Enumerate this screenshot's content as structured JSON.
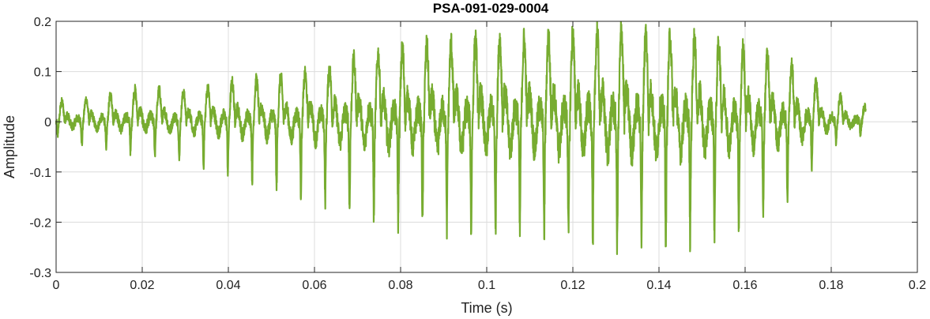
{
  "chart_data": {
    "type": "line",
    "title": "PSA-091-029-0004",
    "xlabel": "Time (s)",
    "ylabel": "Amplitude",
    "xlim": [
      0,
      0.2
    ],
    "ylim": [
      -0.3,
      0.2
    ],
    "grid": true,
    "x_ticks": [
      0,
      0.02,
      0.04,
      0.06,
      0.08,
      0.1,
      0.12,
      0.14,
      0.16,
      0.18,
      0.2
    ],
    "x_tick_labels": [
      "0",
      "0.02",
      "0.04",
      "0.06",
      "0.08",
      "0.1",
      "0.12",
      "0.14",
      "0.16",
      "0.18",
      "0.2"
    ],
    "y_ticks": [
      0.2,
      0.1,
      0,
      -0.1,
      -0.2,
      -0.3
    ],
    "y_tick_labels": [
      "0.2",
      "0.1",
      "0",
      "-0.1",
      "-0.2",
      "-0.3"
    ],
    "series": [
      {
        "color": "#77ac30",
        "duration_s": 0.188,
        "pulse_period_s": 0.00565,
        "envelope": {
          "t": [
            0,
            0.01,
            0.02,
            0.03,
            0.04,
            0.05,
            0.06,
            0.07,
            0.08,
            0.09,
            0.1,
            0.11,
            0.12,
            0.13,
            0.14,
            0.15,
            0.16,
            0.17,
            0.18,
            0.188
          ],
          "max": [
            0.04,
            0.05,
            0.07,
            0.06,
            0.08,
            0.09,
            0.1,
            0.13,
            0.15,
            0.16,
            0.17,
            0.17,
            0.18,
            0.19,
            0.18,
            0.17,
            0.15,
            0.12,
            0.06,
            0.03
          ],
          "min": [
            -0.03,
            -0.06,
            -0.06,
            -0.08,
            -0.1,
            -0.13,
            -0.15,
            -0.18,
            -0.2,
            -0.21,
            -0.22,
            -0.22,
            -0.23,
            -0.25,
            -0.24,
            -0.23,
            -0.2,
            -0.16,
            -0.05,
            -0.02
          ]
        }
      }
    ]
  }
}
